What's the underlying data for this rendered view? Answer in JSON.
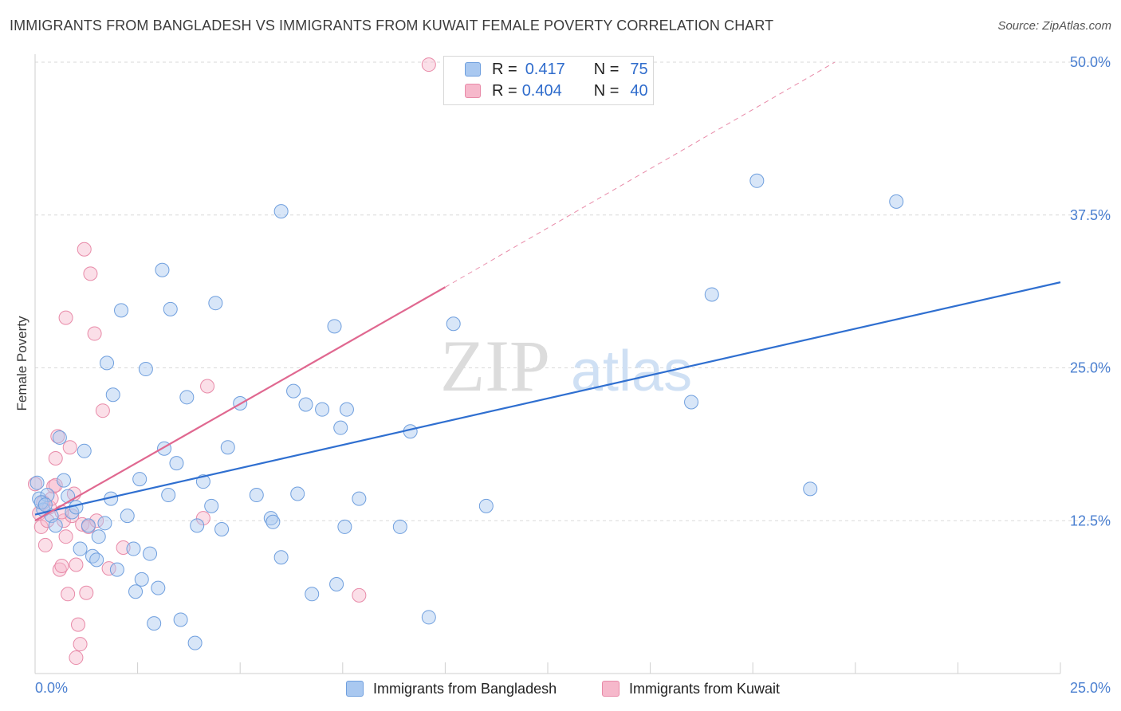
{
  "title": "IMMIGRANTS FROM BANGLADESH VS IMMIGRANTS FROM KUWAIT FEMALE POVERTY CORRELATION CHART",
  "source": "Source: ZipAtlas.com",
  "watermark": {
    "zip": "ZIP",
    "atlas": "atlas"
  },
  "legend": {
    "series1": {
      "r_label": "R =",
      "r_value": "0.417",
      "n_label": "N =",
      "n_value": "75"
    },
    "series2": {
      "r_label": "R =",
      "r_value": "0.404",
      "n_label": "N =",
      "n_value": "40"
    }
  },
  "bottom_legend": {
    "series1": "Immigrants from Bangladesh",
    "series2": "Immigrants from Kuwait"
  },
  "colors": {
    "blue_fill": "#a9c8f0",
    "blue_stroke": "#6f9fde",
    "blue_line": "#2f6fd0",
    "pink_fill": "#f6b8cb",
    "pink_stroke": "#e88aa8",
    "pink_line": "#e06890",
    "tick_text": "#4a7fd0",
    "grid": "#d9d9d9"
  },
  "chart_data": {
    "type": "scatter",
    "title": "IMMIGRANTS FROM BANGLADESH VS IMMIGRANTS FROM KUWAIT FEMALE POVERTY CORRELATION CHART",
    "xlabel": "",
    "ylabel": "Female Poverty",
    "xlim": [
      0,
      25
    ],
    "ylim": [
      0,
      50
    ],
    "x_tick_labels": {
      "min": "0.0%",
      "max": "25.0%"
    },
    "y_ticks": [
      {
        "value": 12.5,
        "label": "12.5%"
      },
      {
        "value": 25.0,
        "label": "25.0%"
      },
      {
        "value": 37.5,
        "label": "37.5%"
      },
      {
        "value": 50.0,
        "label": "50.0%"
      }
    ],
    "series": [
      {
        "name": "Immigrants from Bangladesh",
        "color": "#a9c8f0",
        "trend": {
          "x1": 0.0,
          "y1": 13.0,
          "x2": 25.0,
          "y2": 32.0
        },
        "points": [
          [
            0.1,
            14.3
          ],
          [
            0.2,
            13.4
          ],
          [
            0.3,
            14.6
          ],
          [
            0.4,
            12.9
          ],
          [
            0.5,
            12.1
          ],
          [
            0.6,
            19.3
          ],
          [
            0.7,
            15.8
          ],
          [
            0.8,
            14.5
          ],
          [
            0.9,
            13.2
          ],
          [
            1.0,
            13.6
          ],
          [
            1.1,
            10.2
          ],
          [
            1.2,
            18.2
          ],
          [
            1.3,
            12.1
          ],
          [
            1.4,
            9.6
          ],
          [
            1.5,
            9.3
          ],
          [
            1.55,
            11.2
          ],
          [
            1.7,
            12.3
          ],
          [
            1.75,
            25.4
          ],
          [
            1.85,
            14.3
          ],
          [
            1.9,
            22.8
          ],
          [
            2.0,
            8.5
          ],
          [
            2.1,
            29.7
          ],
          [
            2.25,
            12.9
          ],
          [
            2.4,
            10.2
          ],
          [
            2.45,
            6.7
          ],
          [
            2.55,
            15.9
          ],
          [
            2.6,
            7.7
          ],
          [
            2.7,
            24.9
          ],
          [
            2.8,
            9.8
          ],
          [
            2.9,
            4.1
          ],
          [
            3.0,
            7.0
          ],
          [
            3.1,
            33.0
          ],
          [
            3.15,
            18.4
          ],
          [
            3.25,
            14.6
          ],
          [
            3.3,
            29.8
          ],
          [
            3.45,
            17.2
          ],
          [
            3.55,
            4.4
          ],
          [
            3.7,
            22.6
          ],
          [
            3.9,
            2.5
          ],
          [
            3.95,
            12.1
          ],
          [
            4.1,
            15.7
          ],
          [
            4.3,
            13.7
          ],
          [
            4.4,
            30.3
          ],
          [
            4.55,
            11.8
          ],
          [
            4.7,
            18.5
          ],
          [
            5.0,
            22.1
          ],
          [
            5.4,
            14.6
          ],
          [
            5.75,
            12.7
          ],
          [
            5.8,
            12.4
          ],
          [
            6.0,
            9.5
          ],
          [
            6.0,
            37.8
          ],
          [
            6.3,
            23.1
          ],
          [
            6.4,
            14.7
          ],
          [
            6.6,
            22.0
          ],
          [
            6.75,
            6.5
          ],
          [
            7.0,
            21.6
          ],
          [
            7.3,
            28.4
          ],
          [
            7.35,
            7.3
          ],
          [
            7.45,
            20.1
          ],
          [
            7.55,
            12.0
          ],
          [
            7.6,
            21.6
          ],
          [
            7.9,
            14.3
          ],
          [
            8.9,
            12.0
          ],
          [
            9.15,
            19.8
          ],
          [
            9.6,
            4.6
          ],
          [
            10.2,
            28.6
          ],
          [
            11.0,
            13.7
          ],
          [
            16.0,
            22.2
          ],
          [
            16.5,
            31.0
          ],
          [
            17.6,
            40.3
          ],
          [
            18.9,
            15.1
          ],
          [
            21.0,
            38.6
          ],
          [
            0.05,
            15.6
          ],
          [
            0.15,
            14.0
          ],
          [
            0.25,
            13.8
          ]
        ]
      },
      {
        "name": "Immigrants from Kuwait",
        "color": "#f6b8cb",
        "trend": {
          "x1": 0.0,
          "y1": 12.5,
          "x2": 10.0,
          "y2": 31.6,
          "dash_to_x": 19.5,
          "dash_to_y": 50.0
        },
        "points": [
          [
            0.0,
            15.5
          ],
          [
            0.1,
            13.1
          ],
          [
            0.15,
            12.0
          ],
          [
            0.25,
            10.5
          ],
          [
            0.3,
            12.5
          ],
          [
            0.35,
            13.6
          ],
          [
            0.4,
            14.3
          ],
          [
            0.45,
            15.3
          ],
          [
            0.5,
            17.6
          ],
          [
            0.55,
            19.4
          ],
          [
            0.6,
            8.5
          ],
          [
            0.65,
            8.8
          ],
          [
            0.7,
            12.5
          ],
          [
            0.75,
            11.2
          ],
          [
            0.75,
            29.1
          ],
          [
            0.8,
            6.5
          ],
          [
            0.85,
            18.5
          ],
          [
            0.9,
            12.9
          ],
          [
            0.95,
            14.7
          ],
          [
            1.0,
            8.9
          ],
          [
            1.0,
            1.3
          ],
          [
            1.05,
            4.0
          ],
          [
            1.1,
            2.4
          ],
          [
            1.15,
            12.2
          ],
          [
            1.2,
            34.7
          ],
          [
            1.25,
            6.6
          ],
          [
            1.3,
            12.0
          ],
          [
            1.35,
            32.7
          ],
          [
            1.45,
            27.8
          ],
          [
            1.5,
            12.5
          ],
          [
            1.65,
            21.5
          ],
          [
            1.8,
            8.6
          ],
          [
            2.15,
            10.3
          ],
          [
            4.1,
            12.7
          ],
          [
            4.2,
            23.5
          ],
          [
            7.9,
            6.4
          ],
          [
            9.6,
            49.8
          ],
          [
            0.2,
            14.0
          ],
          [
            0.5,
            15.4
          ],
          [
            0.65,
            13.2
          ]
        ]
      }
    ]
  }
}
